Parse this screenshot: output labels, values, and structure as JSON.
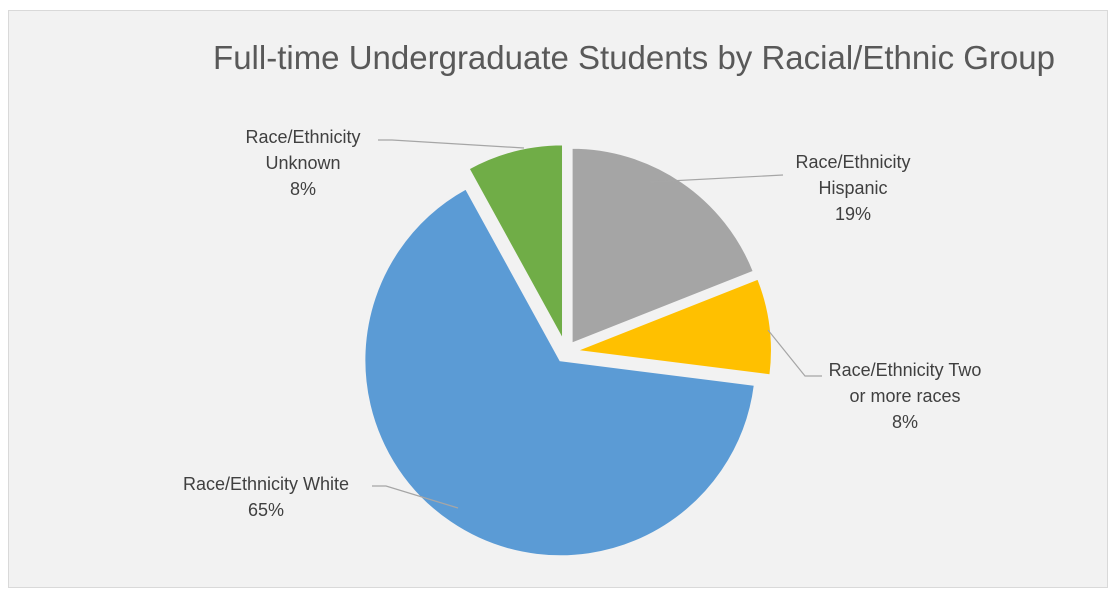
{
  "chart_data": {
    "type": "pie",
    "title": "Full-time Undergraduate Students by Racial/Ethnic Group",
    "slices": [
      {
        "name": "Race/Ethnicity Hispanic",
        "value": 19,
        "color": "#a5a5a5",
        "label_lines": [
          "Race/Ethnicity",
          "Hispanic",
          "19%"
        ]
      },
      {
        "name": "Race/Ethnicity Two or more races",
        "value": 8,
        "color": "#ffc000",
        "label_lines": [
          "Race/Ethnicity Two",
          "or more races",
          "8%"
        ]
      },
      {
        "name": "Race/Ethnicity White",
        "value": 65,
        "color": "#5b9bd5",
        "label_lines": [
          "Race/Ethnicity White",
          "65%"
        ]
      },
      {
        "name": "Race/Ethnicity Unknown",
        "value": 8,
        "color": "#70ad47",
        "label_lines": [
          "Race/Ethnicity",
          "Unknown",
          "8%"
        ]
      }
    ],
    "legend": "none",
    "exploded": true
  }
}
